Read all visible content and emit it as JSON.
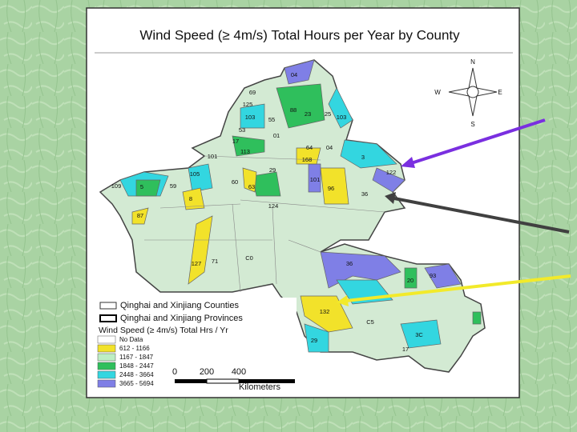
{
  "title": "Wind Speed (≥ 4m/s) Total Hours per Year by County",
  "compass": {
    "n": "N",
    "w": "W",
    "e": "E",
    "s": "S"
  },
  "map_labels": [
    "04",
    "69",
    "125",
    "103",
    "88",
    "23",
    "25",
    "103",
    "55",
    "53",
    "01",
    "113",
    "17",
    "64",
    "04",
    "168",
    "101",
    "3",
    "29",
    "105",
    "122",
    "60",
    "63",
    "101",
    "96",
    "36",
    "109",
    "5",
    "59",
    "8",
    "124",
    "87",
    "127",
    "71",
    "C0",
    "36",
    "20",
    "93",
    "132",
    "C5",
    "29",
    "3C",
    "17"
  ],
  "legend": {
    "counties": "Qinghai and Xinjiang Counties",
    "provinces": "Qinghai and Xinjiang Provinces",
    "heading": "Wind Speed (≥ 4m/s) Total Hrs / Yr",
    "classes": [
      {
        "label": "No Data",
        "color": "#ffffff"
      },
      {
        "label": "612 - 1166",
        "color": "#f2e22a"
      },
      {
        "label": "1167 - 1847",
        "color": "#bdeec4"
      },
      {
        "label": "1848 - 2447",
        "color": "#2fbf5c"
      },
      {
        "label": "2448 - 3664",
        "color": "#33d6e0"
      },
      {
        "label": "3665 - 5694",
        "color": "#7f7fe6"
      }
    ]
  },
  "scale": {
    "ticks": [
      "0",
      "200",
      "400"
    ],
    "unit": "Kilometers"
  }
}
